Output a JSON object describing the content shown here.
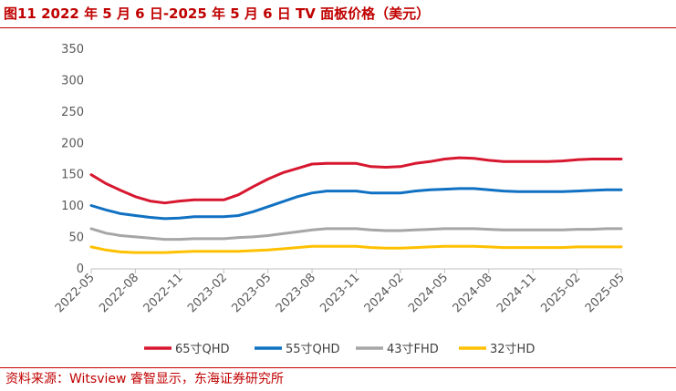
{
  "title": "图11  2022 年 5 月 6 日-2025 年 5 月 6 日 TV 面板价格（美元）",
  "source": "资料来源：Witsview 睿智显示，东海证券研究所",
  "chart_data": {
    "type": "line",
    "title": "图11  2022 年 5 月 6 日-2025 年 5 月 6 日 TV 面板价格（美元）",
    "xlabel": "",
    "ylabel": "",
    "ylim": [
      0,
      350
    ],
    "yticks": [
      0,
      50,
      100,
      150,
      200,
      250,
      300,
      350
    ],
    "x_tick_labels": [
      "2022-05",
      "2022-08",
      "2022-11",
      "2023-02",
      "2023-05",
      "2023-08",
      "2023-11",
      "2024-02",
      "2024-05",
      "2024-08",
      "2024-11",
      "2025-02",
      "2025-05"
    ],
    "x": [
      "2022-05",
      "2022-06",
      "2022-07",
      "2022-08",
      "2022-09",
      "2022-10",
      "2022-11",
      "2022-12",
      "2023-01",
      "2023-02",
      "2023-03",
      "2023-04",
      "2023-05",
      "2023-06",
      "2023-07",
      "2023-08",
      "2023-09",
      "2023-10",
      "2023-11",
      "2023-12",
      "2024-01",
      "2024-02",
      "2024-03",
      "2024-04",
      "2024-05",
      "2024-06",
      "2024-07",
      "2024-08",
      "2024-09",
      "2024-10",
      "2024-11",
      "2024-12",
      "2025-01",
      "2025-02",
      "2025-03",
      "2025-04",
      "2025-05"
    ],
    "grid": false,
    "legend_position": "bottom",
    "series": [
      {
        "name": "65寸QHD",
        "color": "#d7172f",
        "values": [
          150,
          136,
          125,
          115,
          108,
          105,
          108,
          110,
          110,
          110,
          118,
          131,
          143,
          153,
          160,
          167,
          168,
          168,
          168,
          163,
          162,
          163,
          168,
          171,
          175,
          177,
          176,
          173,
          171,
          171,
          171,
          171,
          172,
          174,
          175,
          175,
          175
        ]
      },
      {
        "name": "55寸QHD",
        "color": "#1071c2",
        "values": [
          101,
          94,
          88,
          85,
          82,
          80,
          81,
          83,
          83,
          83,
          85,
          91,
          99,
          107,
          115,
          121,
          124,
          124,
          124,
          121,
          121,
          121,
          124,
          126,
          127,
          128,
          128,
          126,
          124,
          123,
          123,
          123,
          123,
          124,
          125,
          126,
          126
        ]
      },
      {
        "name": "43寸FHD",
        "color": "#a6a6a6",
        "values": [
          64,
          57,
          53,
          51,
          49,
          47,
          47,
          48,
          48,
          48,
          50,
          51,
          53,
          56,
          59,
          62,
          64,
          64,
          64,
          62,
          61,
          61,
          62,
          63,
          64,
          64,
          64,
          63,
          62,
          62,
          62,
          62,
          62,
          63,
          63,
          64,
          64
        ]
      },
      {
        "name": "32寸HD",
        "color": "#ffc000",
        "values": [
          35,
          30,
          27,
          26,
          26,
          26,
          27,
          28,
          28,
          28,
          28,
          29,
          30,
          32,
          34,
          36,
          36,
          36,
          36,
          34,
          33,
          33,
          34,
          35,
          36,
          36,
          36,
          35,
          34,
          34,
          34,
          34,
          34,
          35,
          35,
          35,
          35
        ]
      }
    ]
  }
}
